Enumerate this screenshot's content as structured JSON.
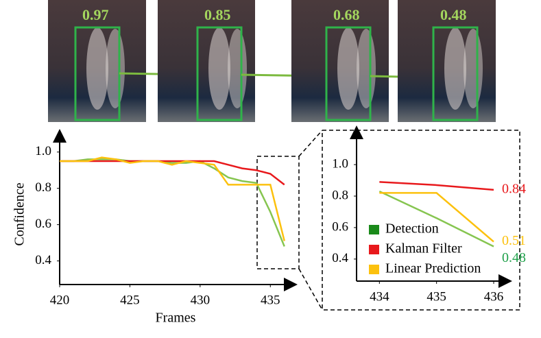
{
  "detections": {
    "scores": [
      0.97,
      0.85,
      0.68,
      0.48
    ]
  },
  "chart_data": [
    {
      "type": "line",
      "xlabel": "Frames",
      "ylabel": "Confidence",
      "x": [
        420,
        421,
        422,
        423,
        424,
        425,
        426,
        427,
        428,
        429,
        430,
        431,
        432,
        433,
        434,
        435,
        436
      ],
      "series": [
        {
          "name": "Detection",
          "color": "#86c550",
          "values": [
            0.95,
            0.95,
            0.96,
            0.96,
            0.96,
            0.95,
            0.95,
            0.95,
            0.94,
            0.94,
            0.95,
            0.91,
            0.86,
            0.84,
            0.83,
            0.67,
            0.48
          ]
        },
        {
          "name": "Kalman Filter",
          "color": "#e8191c",
          "values": [
            0.95,
            0.95,
            0.95,
            0.95,
            0.95,
            0.95,
            0.95,
            0.95,
            0.95,
            0.95,
            0.95,
            0.95,
            0.93,
            0.91,
            0.9,
            0.88,
            0.82
          ]
        },
        {
          "name": "Linear Prediction",
          "color": "#fcc10e",
          "values": [
            0.95,
            0.95,
            0.95,
            0.97,
            0.96,
            0.94,
            0.95,
            0.95,
            0.93,
            0.95,
            0.94,
            0.93,
            0.82,
            0.82,
            0.82,
            0.82,
            0.51
          ]
        }
      ],
      "xlim": [
        420,
        436.5
      ],
      "ylim": [
        0.27,
        1.12
      ],
      "xticks": [
        420,
        425,
        430,
        435
      ],
      "yticks": [
        {
          "value": 1,
          "label": "1.0"
        },
        0.8,
        0.6,
        0.4
      ]
    },
    {
      "type": "line",
      "legend": "lower left",
      "x": [
        434,
        435,
        436
      ],
      "series": [
        {
          "name": "Detection",
          "color": "#86c550",
          "label_color": "#1fa04a",
          "legend_color": "#1a8a1a",
          "values": [
            0.83,
            0.66,
            0.48
          ]
        },
        {
          "name": "Kalman Filter",
          "color": "#e8191c",
          "label_color": "#e8191c",
          "legend_color": "#e8191c",
          "values": [
            0.89,
            0.87,
            0.84
          ]
        },
        {
          "name": "Linear Prediction",
          "color": "#fcc10e",
          "label_color": "#fcc10e",
          "legend_color": "#fcc10e",
          "values": [
            0.82,
            0.82,
            0.51
          ]
        }
      ],
      "xlim": [
        433.6,
        436.3
      ],
      "ylim": [
        0.26,
        1.24
      ],
      "xticks": [
        434,
        435,
        436
      ],
      "yticks": [
        {
          "value": 1,
          "label": "1.0"
        },
        0.8,
        0.6,
        0.4
      ]
    }
  ]
}
